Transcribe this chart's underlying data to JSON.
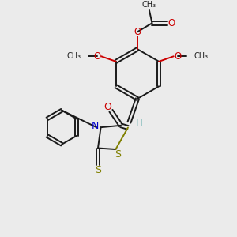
{
  "bg_color": "#ebebeb",
  "bond_color": "#1a1a1a",
  "red_color": "#cc0000",
  "blue_color": "#0000cc",
  "yellow_color": "#808000",
  "teal_color": "#008080",
  "figsize": [
    3.0,
    3.0
  ],
  "dpi": 100,
  "xlim": [
    0,
    10
  ],
  "ylim": [
    0,
    10
  ]
}
